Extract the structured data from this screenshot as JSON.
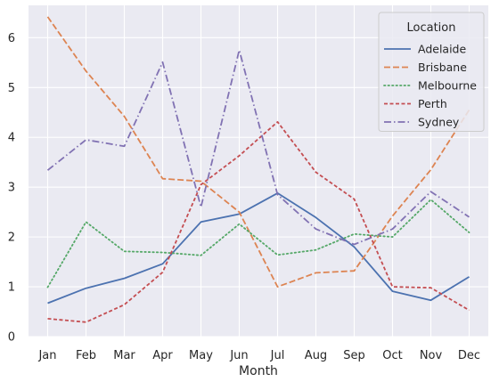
{
  "chart_data": {
    "type": "line",
    "title": "",
    "xlabel": "Month",
    "ylabel": "",
    "categories": [
      "Jan",
      "Feb",
      "Mar",
      "Apr",
      "May",
      "Jun",
      "Jul",
      "Aug",
      "Sep",
      "Oct",
      "Nov",
      "Dec"
    ],
    "ylim": [
      0,
      6.65
    ],
    "yticks": [
      0,
      1,
      2,
      3,
      4,
      5,
      6
    ],
    "grid": true,
    "background": "#eaeaf2",
    "legend": {
      "title": "Location",
      "placement": "top-right"
    },
    "series": [
      {
        "name": "Adelaide",
        "color": "#4c72b0",
        "dash": "solid",
        "values": [
          0.67,
          0.97,
          1.17,
          1.46,
          2.3,
          2.46,
          2.88,
          2.39,
          1.8,
          0.91,
          0.73,
          1.2
        ]
      },
      {
        "name": "Brisbane",
        "color": "#dd8452",
        "dash": "dashed",
        "values": [
          6.42,
          5.33,
          4.42,
          3.17,
          3.12,
          2.5,
          1.0,
          1.28,
          1.32,
          2.42,
          3.35,
          4.55
        ]
      },
      {
        "name": "Melbourne",
        "color": "#55a868",
        "dash": "dotted",
        "values": [
          0.99,
          2.3,
          1.71,
          1.69,
          1.63,
          2.26,
          1.64,
          1.74,
          2.06,
          2.0,
          2.75,
          2.09
        ]
      },
      {
        "name": "Perth",
        "color": "#c44e52",
        "dash": "densedash",
        "values": [
          0.36,
          0.29,
          0.64,
          1.29,
          3.05,
          3.63,
          4.31,
          3.3,
          2.76,
          1.0,
          0.98,
          0.53
        ]
      },
      {
        "name": "Sydney",
        "color": "#8172b3",
        "dash": "dashdot",
        "values": [
          3.34,
          3.95,
          3.82,
          5.51,
          2.6,
          5.75,
          2.85,
          2.16,
          1.85,
          2.16,
          2.91,
          2.4
        ]
      }
    ]
  }
}
